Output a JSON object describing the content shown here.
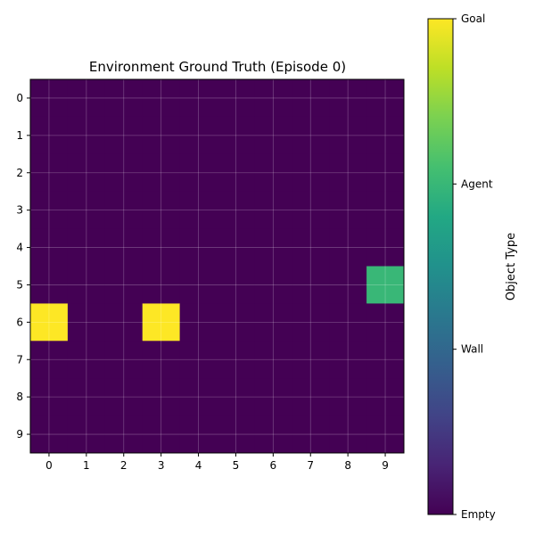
{
  "chart_data": {
    "type": "heatmap",
    "title": "Environment Ground Truth (Episode 0)",
    "xlabel": "",
    "ylabel": "",
    "x_ticks": [
      "0",
      "1",
      "2",
      "3",
      "4",
      "5",
      "6",
      "7",
      "8",
      "9"
    ],
    "y_ticks": [
      "0",
      "1",
      "2",
      "3",
      "4",
      "5",
      "6",
      "7",
      "8",
      "9"
    ],
    "grid": true,
    "colormap": "viridis",
    "vmin": 0,
    "vmax": 3,
    "values": [
      [
        0,
        0,
        0,
        0,
        0,
        0,
        0,
        0,
        0,
        0
      ],
      [
        0,
        0,
        0,
        0,
        0,
        0,
        0,
        0,
        0,
        0
      ],
      [
        0,
        0,
        0,
        0,
        0,
        0,
        0,
        0,
        0,
        0
      ],
      [
        0,
        0,
        0,
        0,
        0,
        0,
        0,
        0,
        0,
        0
      ],
      [
        0,
        0,
        0,
        0,
        0,
        0,
        0,
        0,
        0,
        0
      ],
      [
        0,
        0,
        0,
        0,
        0,
        0,
        0,
        0,
        0,
        2
      ],
      [
        3,
        0,
        0,
        3,
        0,
        0,
        0,
        0,
        0,
        0
      ],
      [
        0,
        0,
        0,
        0,
        0,
        0,
        0,
        0,
        0,
        0
      ],
      [
        0,
        0,
        0,
        0,
        0,
        0,
        0,
        0,
        0,
        0
      ],
      [
        0,
        0,
        0,
        0,
        0,
        0,
        0,
        0,
        0,
        0
      ]
    ],
    "colorbar": {
      "label": "Object Type",
      "ticks": [
        {
          "value": 3,
          "label": "Goal"
        },
        {
          "value": 2,
          "label": "Agent"
        },
        {
          "value": 1,
          "label": "Wall"
        },
        {
          "value": 0,
          "label": "Empty"
        }
      ]
    }
  }
}
